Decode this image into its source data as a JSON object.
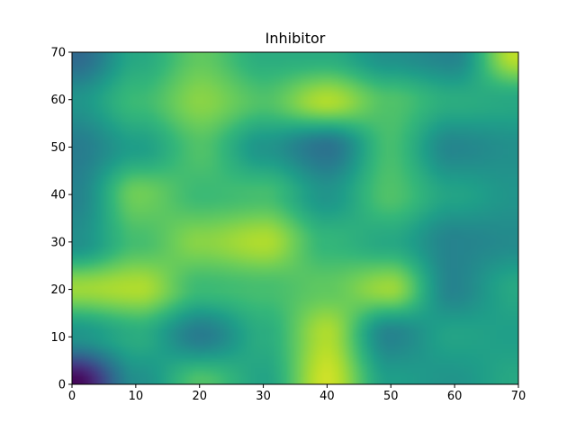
{
  "chart_data": {
    "type": "heatmap",
    "title": "Inhibitor",
    "xlabel": "",
    "ylabel": "",
    "xlim": [
      0,
      70
    ],
    "ylim": [
      0,
      70
    ],
    "xticks": [
      0,
      10,
      20,
      30,
      40,
      50,
      60,
      70
    ],
    "yticks": [
      0,
      10,
      20,
      30,
      40,
      50,
      60,
      70
    ],
    "colormap": "viridis",
    "grid": false,
    "grid_resolution": 8,
    "z_approx": [
      [
        0.02,
        0.5,
        0.72,
        0.58,
        0.93,
        0.56,
        0.52,
        0.6
      ],
      [
        0.52,
        0.62,
        0.42,
        0.62,
        0.88,
        0.45,
        0.58,
        0.56
      ],
      [
        0.85,
        0.88,
        0.68,
        0.7,
        0.75,
        0.85,
        0.45,
        0.6
      ],
      [
        0.5,
        0.7,
        0.82,
        0.88,
        0.66,
        0.6,
        0.45,
        0.48
      ],
      [
        0.45,
        0.78,
        0.68,
        0.7,
        0.52,
        0.72,
        0.58,
        0.52
      ],
      [
        0.42,
        0.56,
        0.72,
        0.52,
        0.38,
        0.7,
        0.46,
        0.5
      ],
      [
        0.52,
        0.68,
        0.82,
        0.72,
        0.88,
        0.72,
        0.62,
        0.6
      ],
      [
        0.34,
        0.6,
        0.75,
        0.62,
        0.62,
        0.5,
        0.45,
        0.9
      ]
    ]
  },
  "colors": {
    "background": "#ffffff",
    "axes": "#000000",
    "viridis_stops": [
      "#440154",
      "#482878",
      "#3e4989",
      "#31688e",
      "#26828e",
      "#1f9e89",
      "#35b779",
      "#6ece58",
      "#b5de2b",
      "#fde725"
    ]
  }
}
